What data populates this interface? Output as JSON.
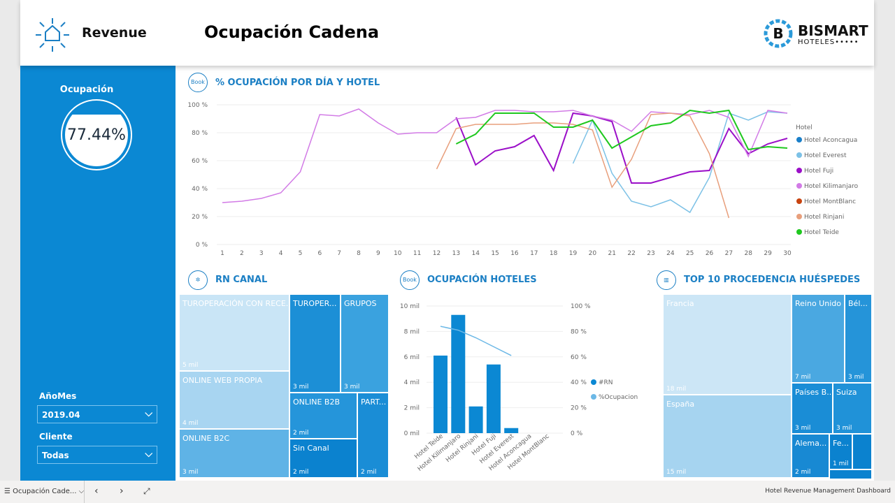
{
  "header": {
    "brand": "Revenue",
    "title": "Ocupación Cadena",
    "logo_text": "BISMART",
    "logo_sub": "HOTELES"
  },
  "sidebar": {
    "kpi_label": "Ocupación",
    "kpi_value": "77.44%",
    "filters": [
      {
        "label": "AñoMes",
        "value": "2019.04"
      },
      {
        "label": "Cliente",
        "value": "Todas"
      }
    ]
  },
  "line_chart": {
    "title": "% OCUPACIÓN POR DÍA Y HOTEL",
    "legend_title": "Hotel"
  },
  "rn_canal": {
    "title": "RN CANAL",
    "cells": [
      {
        "label": "TUROPERACIÓN CON RECE...",
        "value": "5 mil"
      },
      {
        "label": "ONLINE WEB PROPIA",
        "value": "4 mil"
      },
      {
        "label": "ONLINE B2C",
        "value": "3 mil"
      },
      {
        "label": "TUROPER...",
        "value": "3 mil"
      },
      {
        "label": "GRUPOS",
        "value": "3 mil"
      },
      {
        "label": "ONLINE B2B",
        "value": "2 mil"
      },
      {
        "label": "Sin Canal",
        "value": "2 mil"
      },
      {
        "label": "PART...",
        "value": "2 mil"
      }
    ]
  },
  "ocupacion_hoteles": {
    "title": "OCUPACIÓN HOTELES",
    "legend": [
      "#RN",
      "%Ocupacion"
    ]
  },
  "procedencia": {
    "title": "TOP 10 PROCEDENCIA HUÉSPEDES",
    "cells": [
      {
        "label": "Francia",
        "value": "18 mil"
      },
      {
        "label": "España",
        "value": "15 mil"
      },
      {
        "label": "Reino Unido",
        "value": "7 mil"
      },
      {
        "label": "Bél...",
        "value": "3 mil"
      },
      {
        "label": "Países B...",
        "value": "3 mil"
      },
      {
        "label": "Suiza",
        "value": "3 mil"
      },
      {
        "label": "Alema...",
        "value": "2 mil"
      },
      {
        "label": "Fe...",
        "value": "1 mil"
      },
      {
        "label": "",
        "value": ""
      },
      {
        "label": "",
        "value": ""
      }
    ]
  },
  "bottombar": {
    "page_tab": "Ocupación Cade...",
    "report_name": "Hotel Revenue Management Dashboard"
  },
  "chart_data": [
    {
      "type": "line",
      "title": "% OCUPACIÓN POR DÍA Y HOTEL",
      "ylim": [
        0,
        100
      ],
      "yticks": [
        "0 %",
        "20 %",
        "40 %",
        "60 %",
        "80 %",
        "100 %"
      ],
      "x": [
        1,
        2,
        3,
        4,
        5,
        6,
        7,
        8,
        9,
        10,
        11,
        12,
        13,
        14,
        15,
        16,
        17,
        18,
        19,
        20,
        21,
        22,
        23,
        24,
        25,
        26,
        27,
        28,
        29,
        30
      ],
      "legend_placement": "right",
      "grid": true,
      "series": [
        {
          "name": "Hotel Aconcagua",
          "color": "#1a7fc9",
          "values": [
            null,
            null,
            null,
            null,
            null,
            null,
            null,
            null,
            null,
            null,
            null,
            null,
            null,
            null,
            null,
            null,
            null,
            null,
            null,
            null,
            null,
            null,
            null,
            null,
            null,
            null,
            null,
            null,
            null,
            null
          ]
        },
        {
          "name": "Hotel Everest",
          "color": "#7cc1e6",
          "values": [
            null,
            null,
            null,
            null,
            null,
            null,
            null,
            null,
            null,
            null,
            null,
            null,
            null,
            null,
            null,
            null,
            null,
            null,
            58,
            89,
            51,
            31,
            27,
            32,
            23,
            48,
            94,
            89,
            95,
            94
          ]
        },
        {
          "name": "Hotel Fuji",
          "color": "#9b0fc8",
          "values": [
            null,
            null,
            null,
            null,
            null,
            null,
            null,
            null,
            null,
            null,
            null,
            null,
            91,
            57,
            67,
            70,
            78,
            53,
            94,
            92,
            88,
            44,
            44,
            48,
            52,
            53,
            83,
            65,
            72,
            76
          ]
        },
        {
          "name": "Hotel Kilimanjaro",
          "color": "#d27be6",
          "values": [
            30,
            31,
            33,
            37,
            52,
            93,
            92,
            97,
            87,
            79,
            80,
            80,
            90,
            91,
            96,
            96,
            95,
            95,
            96,
            92,
            89,
            81,
            95,
            94,
            93,
            96,
            91,
            63,
            96,
            94
          ]
        },
        {
          "name": "Hotel MontBlanc",
          "color": "#c8430f",
          "values": [
            null,
            null,
            null,
            null,
            null,
            null,
            null,
            null,
            null,
            null,
            null,
            null,
            null,
            null,
            null,
            null,
            null,
            null,
            null,
            null,
            null,
            null,
            null,
            null,
            null,
            null,
            null,
            null,
            null,
            null
          ]
        },
        {
          "name": "Hotel Rinjani",
          "color": "#e89f7c",
          "values": [
            null,
            null,
            null,
            null,
            null,
            null,
            null,
            null,
            null,
            null,
            null,
            54,
            83,
            86,
            86,
            86,
            87,
            87,
            86,
            82,
            41,
            61,
            93,
            94,
            92,
            65,
            19,
            null,
            null,
            null
          ]
        },
        {
          "name": "Hotel Teide",
          "color": "#1fc81f",
          "values": [
            null,
            null,
            null,
            null,
            null,
            null,
            null,
            null,
            null,
            null,
            null,
            null,
            72,
            79,
            94,
            94,
            94,
            84,
            84,
            89,
            69,
            77,
            85,
            87,
            96,
            94,
            96,
            68,
            70,
            69
          ]
        }
      ]
    },
    {
      "type": "bar",
      "title": "OCUPACIÓN HOTELES",
      "categories": [
        "Hotel Teide",
        "Hotel Kilimanjaro",
        "Hotel Rinjani",
        "Hotel Fuji",
        "Hotel Everest",
        "Hotel Aconcagua",
        "Hotel MontBlanc"
      ],
      "yticks": [
        "0 mil",
        "2 mil",
        "4 mil",
        "6 mil",
        "8 mil",
        "10 mil"
      ],
      "y2ticks": [
        "0 %",
        "20 %",
        "40 %",
        "60 %",
        "80 %",
        "100 %"
      ],
      "ylim": [
        0,
        10000
      ],
      "y2lim": [
        0,
        100
      ],
      "series": [
        {
          "name": "#RN",
          "color": "#0b88d3",
          "values": [
            6100,
            9300,
            2100,
            5400,
            400,
            0,
            0
          ]
        },
        {
          "name": "%Ocupacion",
          "color": "#6cb8e6",
          "type": "line",
          "values": [
            84,
            81,
            75,
            68,
            61,
            null,
            null
          ]
        }
      ]
    }
  ]
}
